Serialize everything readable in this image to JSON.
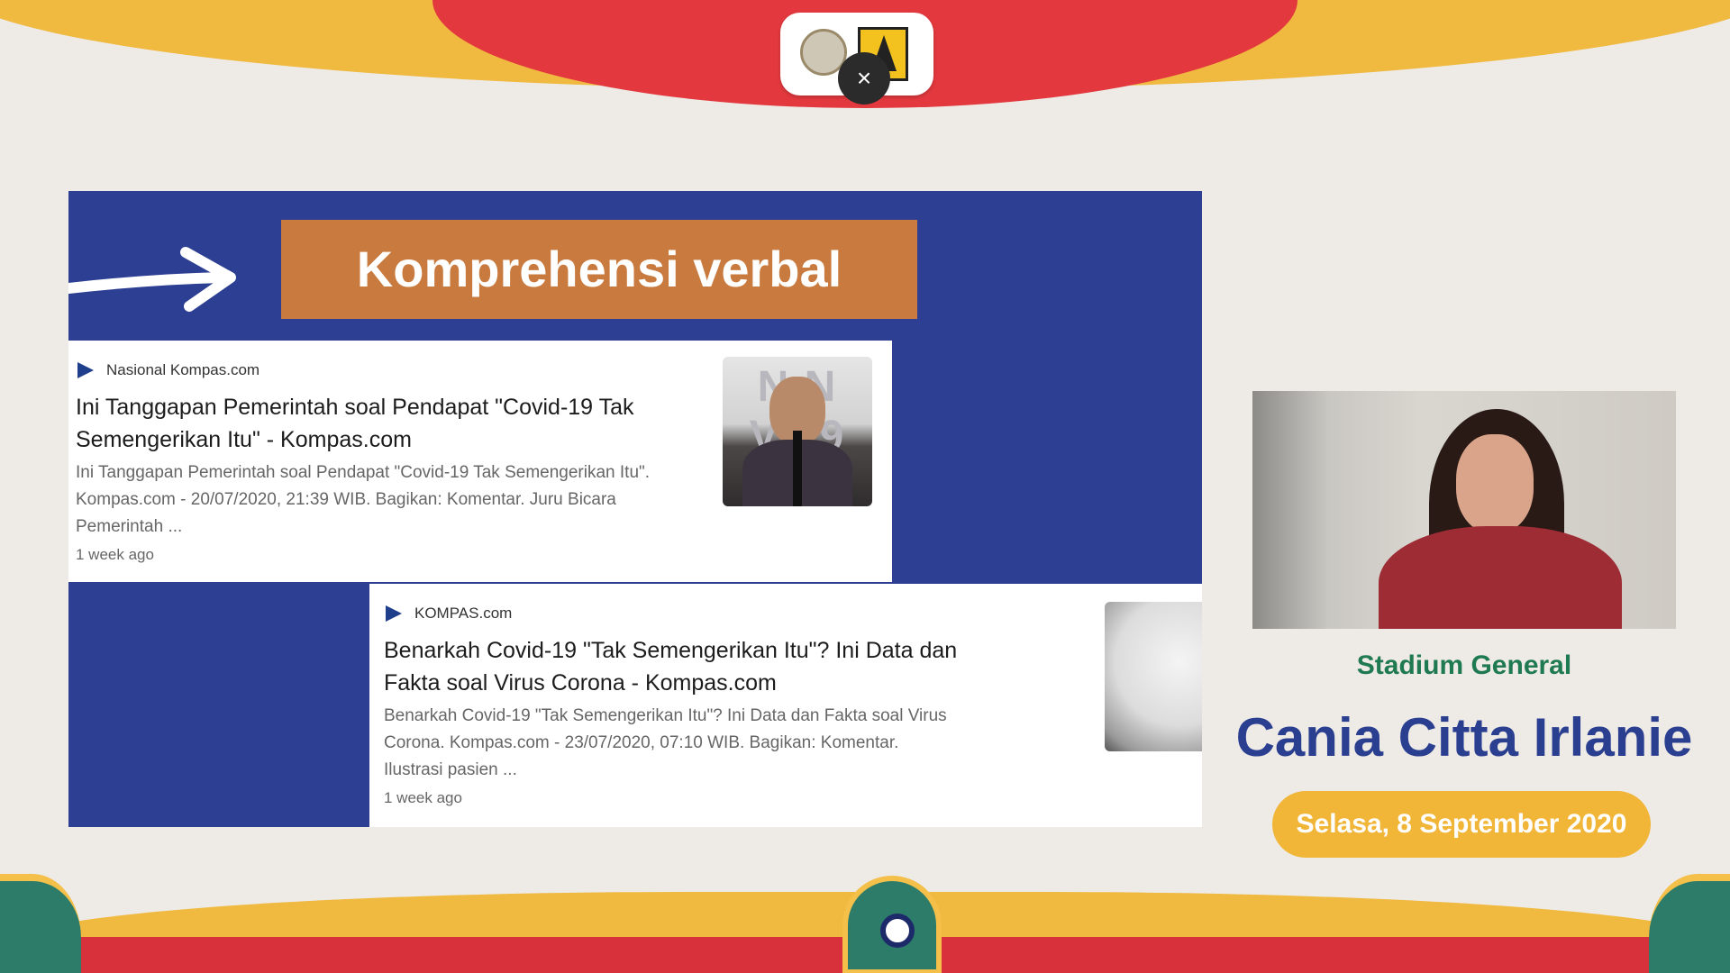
{
  "event": {
    "colors": {
      "yellow": "#f0b93f",
      "red": "#e3393e",
      "slide_blue": "#2d3f93",
      "title_orange": "#c97a3e",
      "green": "#1f7a52",
      "navy": "#2b3f91"
    }
  },
  "controls": {
    "close_label": "×"
  },
  "slide": {
    "title": "Komprehensi verbal",
    "results": [
      {
        "source": "Nasional Kompas.com",
        "headline_line1": "Ini Tanggapan Pemerintah soal Pendapat \"Covid-19 Tak",
        "headline_line2": "Semengerikan Itu\" - Kompas.com",
        "snippet_line1": "Ini Tanggapan Pemerintah soal Pendapat \"Covid-19 Tak Semengerikan Itu\".",
        "snippet_line2": "Kompas.com - 20/07/2020, 21:39 WIB. Bagikan: Komentar. Juru Bicara",
        "snippet_line3": "Pemerintah ...",
        "time_ago": "1 week ago",
        "thumb_text": "N N VI19"
      },
      {
        "source": "KOMPAS.com",
        "headline_line1": "Benarkah Covid-19 \"Tak Semengerikan Itu\"? Ini Data dan",
        "headline_line2": "Fakta soal Virus Corona - Kompas.com",
        "snippet_line1": "Benarkah Covid-19 \"Tak Semengerikan Itu\"? Ini Data dan Fakta soal Virus",
        "snippet_line2": "Corona. Kompas.com - 23/07/2020, 07:10 WIB. Bagikan: Komentar.",
        "snippet_line3": "Ilustrasi pasien ...",
        "time_ago": "1 week ago"
      }
    ]
  },
  "speaker": {
    "session": "Stadium General",
    "name": "Cania Citta Irlanie",
    "date": "Selasa, 8 September 2020"
  }
}
